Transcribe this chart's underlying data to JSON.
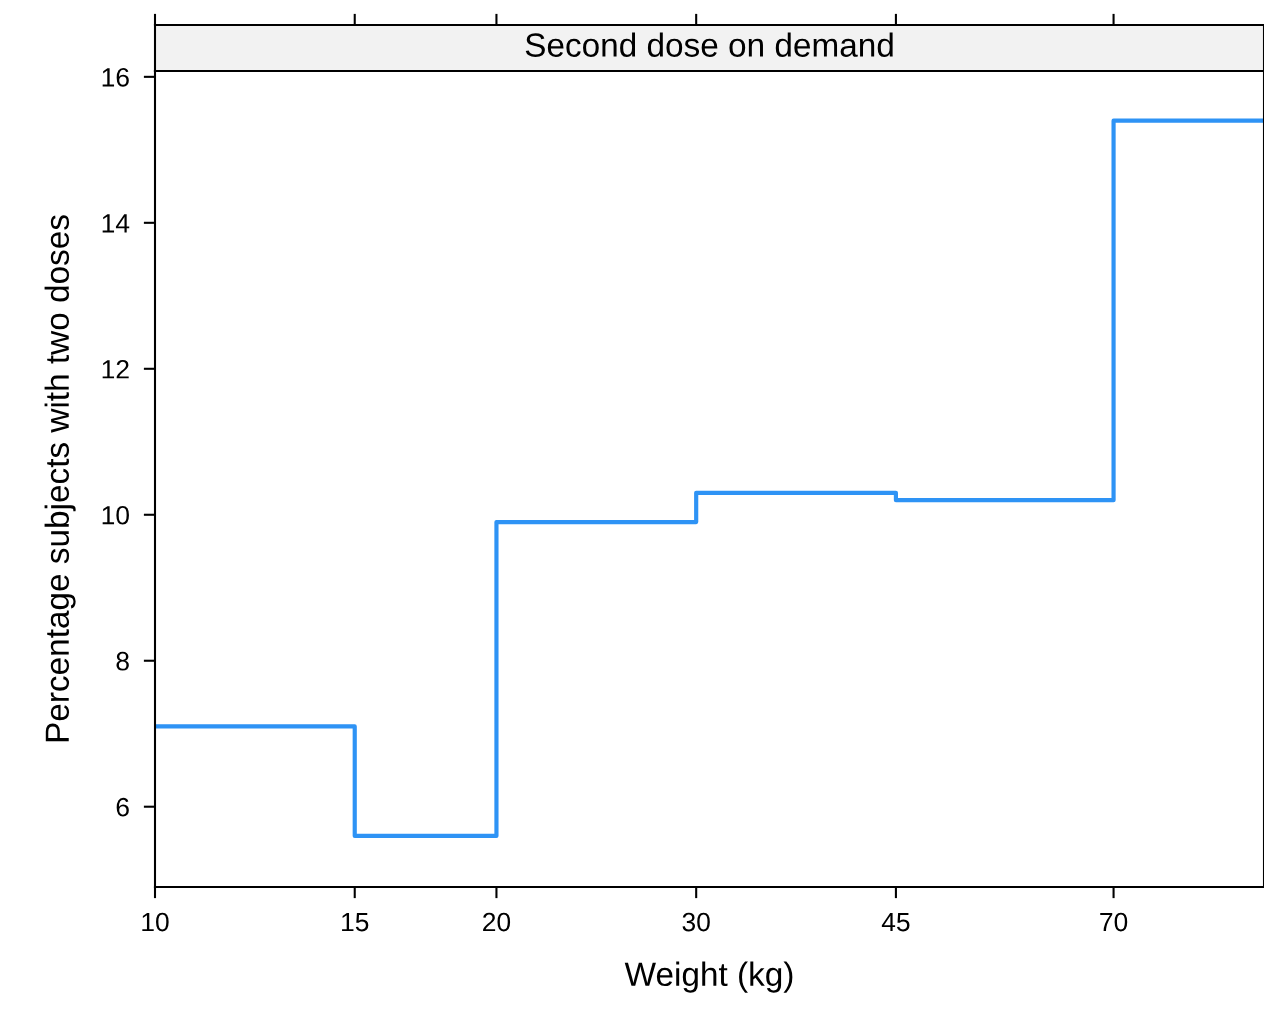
{
  "chart_data": {
    "type": "step",
    "title": "Second dose on demand",
    "xlabel": "Weight (kg)",
    "ylabel": "Percentage subjects with two doses",
    "x": [
      10,
      15,
      20,
      30,
      45,
      70,
      95
    ],
    "series": [
      {
        "color": "#2e93f5",
        "values": [
          7.1,
          5.6,
          9.9,
          10.3,
          10.2,
          15.4,
          15.4
        ]
      }
    ],
    "log": "x",
    "xlim": [
      10,
      95
    ],
    "xticks": [
      10,
      15,
      20,
      30,
      45,
      70
    ],
    "ylim": [
      4.9,
      16.08
    ],
    "yticks": [
      6,
      8,
      10,
      12,
      14,
      16
    ],
    "grid": false,
    "legend": false,
    "marker": "none",
    "line_style": "solid"
  }
}
